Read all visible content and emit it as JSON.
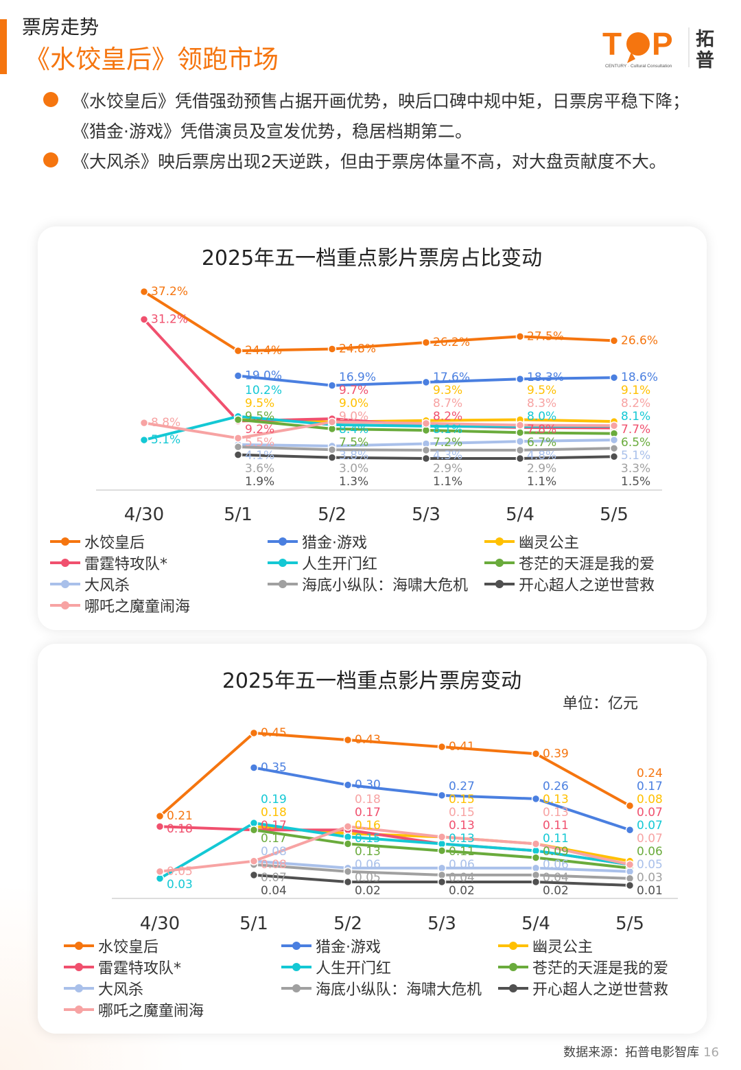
{
  "header": {
    "title": "票房走势",
    "subtitle": "《水饺皇后》领跑市场"
  },
  "logo": {
    "text": "TOP",
    "cn": "拓普",
    "tagline": "CENTURY Cultural Consultation"
  },
  "bullets": [
    "《水饺皇后》凭借强劲预售占据开画优势，映后口碑中规中矩，日票房平稳下降；《猎金·游戏》凭借演员及宣发优势，稳居档期第二。",
    "《大风杀》映后票房出现2天逆跌，但由于票房体量不高，对大盘贡献度不大。"
  ],
  "colors": {
    "accent": "#f5750f"
  },
  "chart_data": [
    {
      "type": "line",
      "title": "2025年五一档重点影片票房占比变动",
      "unit": "%",
      "categories": [
        "4/30",
        "5/1",
        "5/2",
        "5/3",
        "5/4",
        "5/5"
      ],
      "grid": false,
      "legend": "bottom",
      "series": [
        {
          "name": "水饺皇后",
          "color": "#f5750f",
          "values": [
            37.2,
            24.4,
            24.8,
            26.2,
            27.5,
            26.6
          ]
        },
        {
          "name": "猎金·游戏",
          "color": "#4a7fe0",
          "values": [
            null,
            19.0,
            16.9,
            17.6,
            18.3,
            18.6
          ]
        },
        {
          "name": "幽灵公主",
          "color": "#ffc000",
          "values": [
            null,
            9.5,
            9.0,
            9.3,
            9.5,
            9.1
          ]
        },
        {
          "name": "雷霆特攻队*",
          "color": "#f0506e",
          "values": [
            31.2,
            9.2,
            9.7,
            8.2,
            7.8,
            7.7
          ]
        },
        {
          "name": "人生开门红",
          "color": "#14c8d4",
          "values": [
            5.1,
            10.2,
            8.4,
            8.1,
            8.0,
            8.1
          ]
        },
        {
          "name": "苍茫的天涯是我的爱",
          "color": "#6aab3c",
          "values": [
            null,
            9.5,
            7.5,
            7.2,
            6.7,
            6.5
          ]
        },
        {
          "name": "大风杀",
          "color": "#a9c0ea",
          "values": [
            null,
            4.1,
            3.8,
            4.3,
            4.8,
            5.1
          ]
        },
        {
          "name": "海底小纵队：海啸大危机",
          "color": "#a0a0a0",
          "values": [
            null,
            3.6,
            3.0,
            2.9,
            2.9,
            3.3
          ]
        },
        {
          "name": "开心超人之逆世营救",
          "color": "#505050",
          "values": [
            null,
            1.9,
            1.3,
            1.1,
            1.1,
            1.5
          ]
        },
        {
          "name": "哪吒之魔童闹海",
          "color": "#f7a3a3",
          "values": [
            8.8,
            5.5,
            9.0,
            8.7,
            8.3,
            8.2
          ]
        }
      ]
    },
    {
      "type": "line",
      "title": "2025年五一档重点影片票房变动",
      "unit": "单位：亿元",
      "categories": [
        "4/30",
        "5/1",
        "5/2",
        "5/3",
        "5/4",
        "5/5"
      ],
      "grid": false,
      "legend": "bottom",
      "series": [
        {
          "name": "水饺皇后",
          "color": "#f5750f",
          "values": [
            0.21,
            0.45,
            0.43,
            0.41,
            0.39,
            0.24
          ]
        },
        {
          "name": "猎金·游戏",
          "color": "#4a7fe0",
          "values": [
            null,
            0.35,
            0.3,
            0.27,
            0.26,
            0.17
          ]
        },
        {
          "name": "幽灵公主",
          "color": "#ffc000",
          "values": [
            null,
            0.18,
            0.16,
            0.15,
            0.13,
            0.08
          ]
        },
        {
          "name": "雷霆特攻队*",
          "color": "#f0506e",
          "values": [
            0.18,
            0.17,
            0.17,
            0.13,
            0.11,
            0.07
          ]
        },
        {
          "name": "人生开门红",
          "color": "#14c8d4",
          "values": [
            0.03,
            0.19,
            0.15,
            0.13,
            0.11,
            0.07
          ]
        },
        {
          "name": "苍茫的天涯是我的爱",
          "color": "#6aab3c",
          "values": [
            null,
            0.17,
            0.13,
            0.11,
            0.09,
            0.06
          ]
        },
        {
          "name": "大风杀",
          "color": "#a9c0ea",
          "values": [
            null,
            0.08,
            0.06,
            0.06,
            0.06,
            0.05
          ]
        },
        {
          "name": "海底小纵队：海啸大危机",
          "color": "#a0a0a0",
          "values": [
            null,
            0.07,
            0.05,
            0.04,
            0.04,
            0.03
          ]
        },
        {
          "name": "开心超人之逆世营救",
          "color": "#505050",
          "values": [
            null,
            0.04,
            0.02,
            0.02,
            0.02,
            0.01
          ]
        },
        {
          "name": "哪吒之魔童闹海",
          "color": "#f7a3a3",
          "values": [
            0.05,
            0.08,
            0.18,
            0.15,
            0.13,
            0.07
          ]
        }
      ]
    }
  ],
  "footer": {
    "source": "数据来源：拓普电影智库",
    "page": "16"
  }
}
